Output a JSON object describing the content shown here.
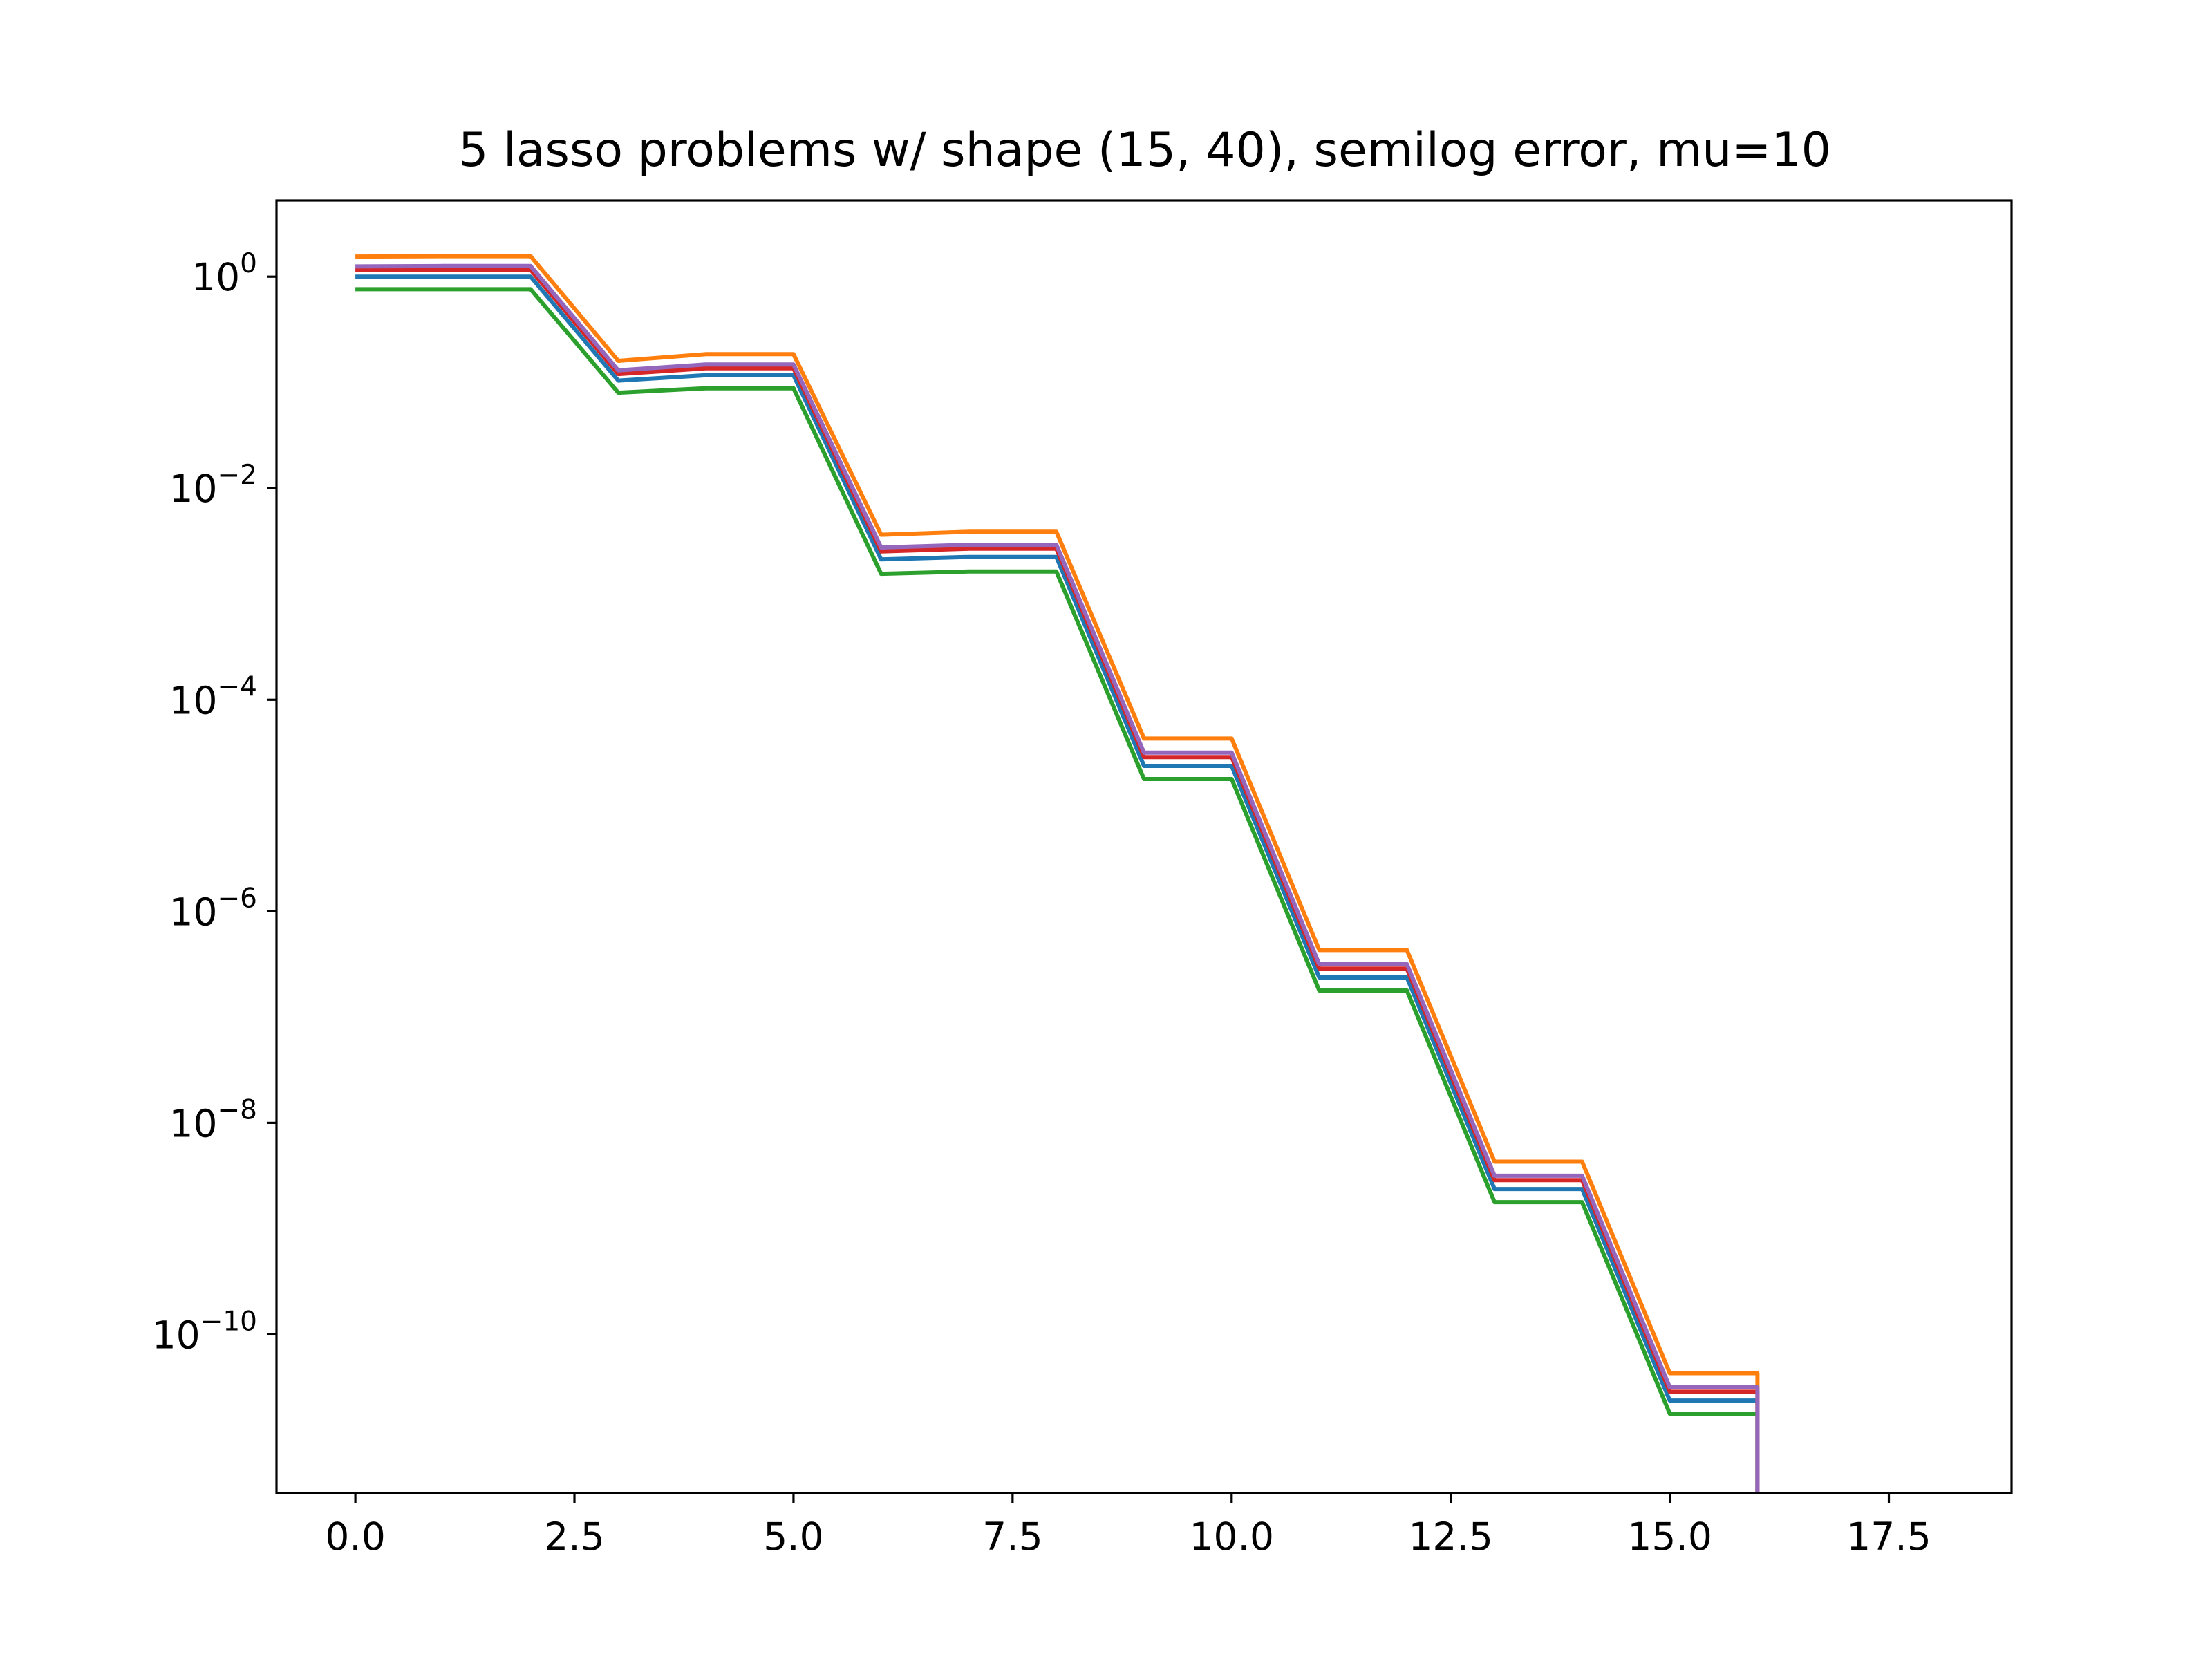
{
  "chart_data": {
    "type": "line",
    "title": "5 lasso problems w/ shape (15, 40), semilog error, mu=10",
    "xlabel": "",
    "ylabel": "",
    "x_scale": "linear",
    "y_scale": "log",
    "xlim": [
      -0.9,
      18.9
    ],
    "ylim": [
      3.16e-12,
      5.25
    ],
    "x_ticks": [
      {
        "value": 0,
        "label": "0.0"
      },
      {
        "value": 2.5,
        "label": "2.5"
      },
      {
        "value": 5,
        "label": "5.0"
      },
      {
        "value": 7.5,
        "label": "7.5"
      },
      {
        "value": 10,
        "label": "10.0"
      },
      {
        "value": 12.5,
        "label": "12.5"
      },
      {
        "value": 15,
        "label": "15.0"
      },
      {
        "value": 17.5,
        "label": "17.5"
      }
    ],
    "y_ticks": [
      {
        "value": 1,
        "base": "10",
        "exponent": "0"
      },
      {
        "value": 0.01,
        "base": "10",
        "exponent": "−2"
      },
      {
        "value": 0.0001,
        "base": "10",
        "exponent": "−4"
      },
      {
        "value": 1e-06,
        "base": "10",
        "exponent": "−6"
      },
      {
        "value": 1e-08,
        "base": "10",
        "exponent": "−8"
      },
      {
        "value": 1e-10,
        "base": "10",
        "exponent": "−10"
      }
    ],
    "grid": false,
    "legend": "none",
    "x": [
      0,
      1,
      2,
      3,
      4,
      5,
      6,
      7,
      8,
      9,
      10,
      11,
      12,
      13,
      14,
      15,
      16
    ],
    "series": [
      {
        "color": "#1f77b4",
        "values": [
          1.0,
          1.0,
          1.0,
          0.104,
          0.117,
          0.117,
          0.00212,
          0.00224,
          0.00224,
          2.37e-05,
          2.37e-05,
          2.37e-07,
          2.37e-07,
          2.37e-09,
          2.37e-09,
          2.37e-11,
          2.37e-11
        ]
      },
      {
        "color": "#ff7f0e",
        "values": [
          1.55,
          1.56,
          1.56,
          0.16,
          0.185,
          0.185,
          0.00363,
          0.00387,
          0.00387,
          4.3e-05,
          4.3e-05,
          4.3e-07,
          4.3e-07,
          4.3e-09,
          4.3e-09,
          4.3e-11,
          4.3e-11
        ]
      },
      {
        "color": "#2ca02c",
        "values": [
          0.76,
          0.76,
          0.76,
          0.08,
          0.088,
          0.088,
          0.00155,
          0.00163,
          0.00163,
          1.78e-05,
          1.78e-05,
          1.78e-07,
          1.78e-07,
          1.78e-09,
          1.78e-09,
          1.78e-11,
          1.78e-11
        ]
      },
      {
        "color": "#d62728",
        "values": [
          1.15,
          1.16,
          1.16,
          0.12,
          0.136,
          0.136,
          0.00252,
          0.00268,
          0.00268,
          2.87e-05,
          2.87e-05,
          2.87e-07,
          2.87e-07,
          2.87e-09,
          2.87e-09,
          2.87e-11,
          2.87e-11
        ]
      },
      {
        "color": "#9467bd",
        "values": [
          1.25,
          1.26,
          1.26,
          0.13,
          0.148,
          0.148,
          0.00275,
          0.00292,
          0.00292,
          3.16e-05,
          3.16e-05,
          3.16e-07,
          3.16e-07,
          3.16e-09,
          3.16e-09,
          3.16e-11,
          3.16e-11
        ]
      }
    ],
    "drop_at_end": {
      "x": 16,
      "to": "below-axis"
    }
  }
}
